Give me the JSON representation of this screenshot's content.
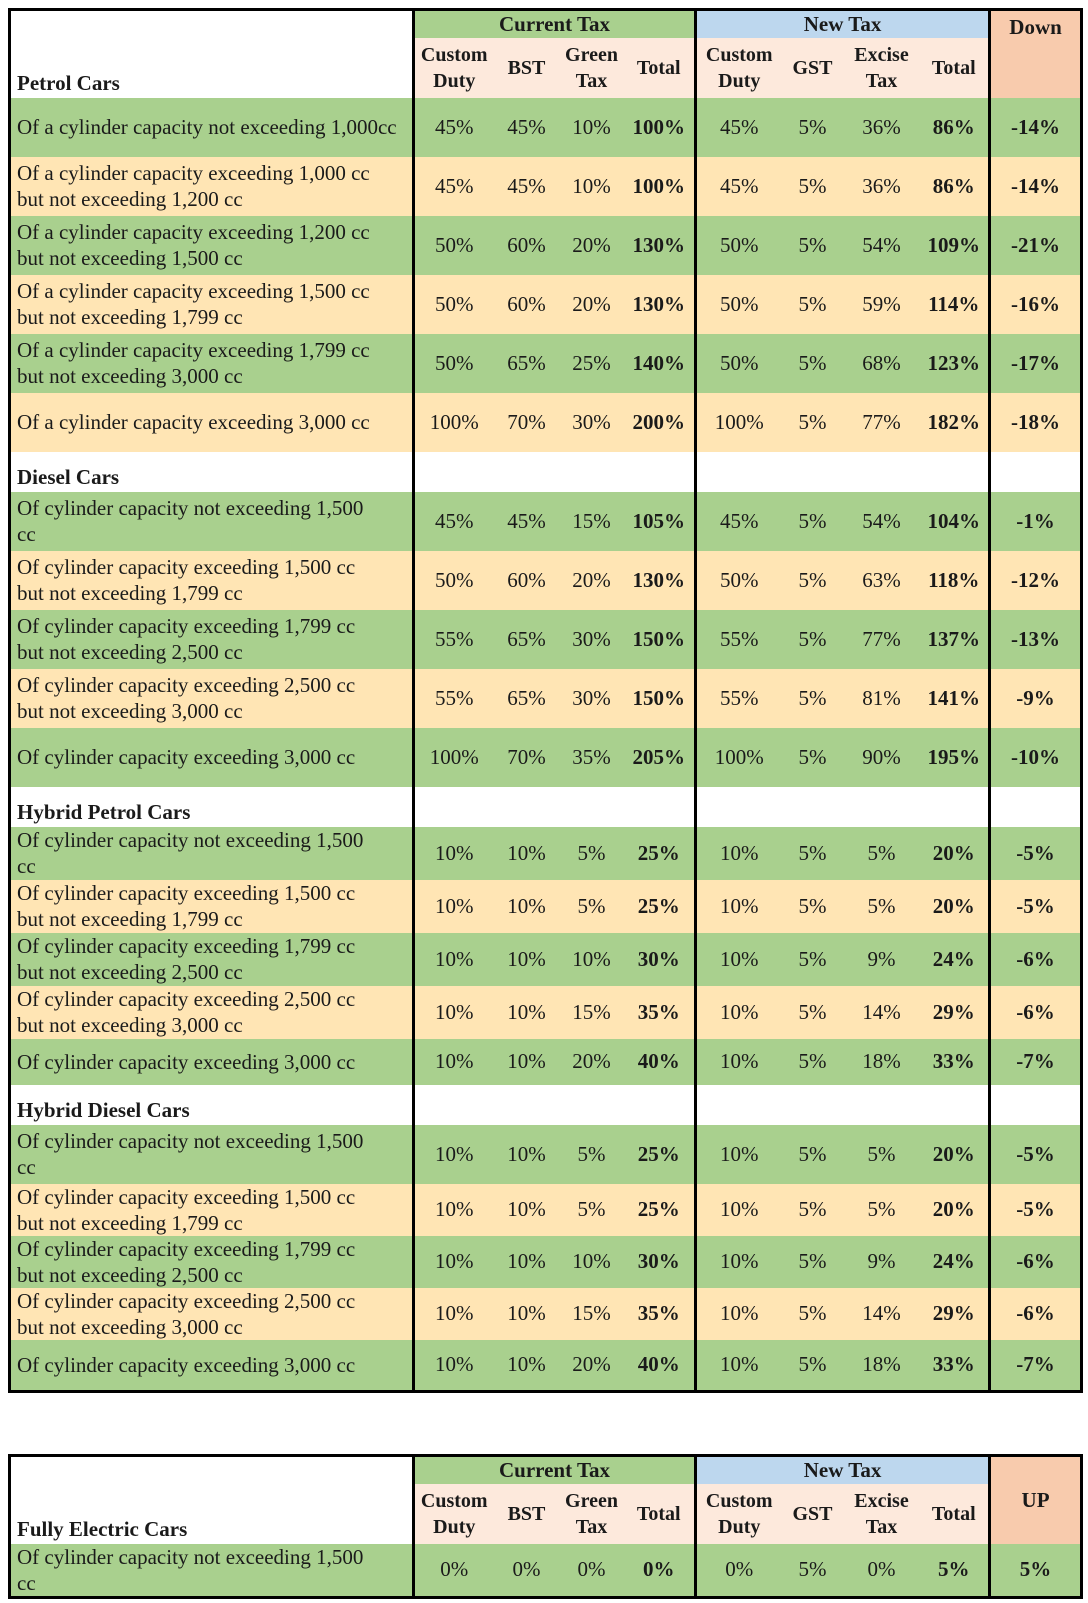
{
  "colors": {
    "green": "#a9d08e",
    "yellow": "#ffe5b4",
    "blue": "#bdd7ee",
    "peach": "#f8cbad"
  },
  "header": {
    "current_tax": "Current Tax",
    "new_tax": "New Tax",
    "down": "Down",
    "up": "UP",
    "custom_duty_1": "Custom",
    "custom_duty_2": "Duty",
    "bst": "BST",
    "green_tax_1": "Green",
    "green_tax_2": "Tax",
    "total": "Total",
    "gst": "GST",
    "excise_tax_1": "Excise",
    "excise_tax_2": "Tax"
  },
  "sections": [
    {
      "title": "Petrol Cars",
      "rows": [
        {
          "label": [
            "Of a cylinder capacity not exceeding 1,000cc"
          ],
          "values": [
            "45%",
            "45%",
            "10%",
            "100%",
            "45%",
            "5%",
            "36%",
            "86%",
            "-14%"
          ]
        },
        {
          "label": [
            "Of a cylinder capacity exceeding 1,000 cc",
            "but not exceeding 1,200 cc"
          ],
          "values": [
            "45%",
            "45%",
            "10%",
            "100%",
            "45%",
            "5%",
            "36%",
            "86%",
            "-14%"
          ]
        },
        {
          "label": [
            "Of a cylinder capacity exceeding 1,200 cc",
            "but not exceeding 1,500 cc"
          ],
          "values": [
            "50%",
            "60%",
            "20%",
            "130%",
            "50%",
            "5%",
            "54%",
            "109%",
            "-21%"
          ]
        },
        {
          "label": [
            "Of a cylinder capacity exceeding 1,500 cc",
            "but not exceeding 1,799 cc"
          ],
          "values": [
            "50%",
            "60%",
            "20%",
            "130%",
            "50%",
            "5%",
            "59%",
            "114%",
            "-16%"
          ]
        },
        {
          "label": [
            "Of a cylinder capacity exceeding 1,799 cc",
            "but not exceeding 3,000 cc"
          ],
          "values": [
            "50%",
            "65%",
            "25%",
            "140%",
            "50%",
            "5%",
            "68%",
            "123%",
            "-17%"
          ]
        },
        {
          "label": [
            "Of a cylinder capacity exceeding 3,000 cc"
          ],
          "values": [
            "100%",
            "70%",
            "30%",
            "200%",
            "100%",
            "5%",
            "77%",
            "182%",
            "-18%"
          ]
        }
      ]
    },
    {
      "title": "Diesel Cars",
      "rows": [
        {
          "label": [
            "Of cylinder capacity not exceeding 1,500",
            "cc"
          ],
          "values": [
            "45%",
            "45%",
            "15%",
            "105%",
            "45%",
            "5%",
            "54%",
            "104%",
            "-1%"
          ]
        },
        {
          "label": [
            "Of cylinder capacity exceeding 1,500 cc",
            "but not exceeding 1,799 cc"
          ],
          "values": [
            "50%",
            "60%",
            "20%",
            "130%",
            "50%",
            "5%",
            "63%",
            "118%",
            "-12%"
          ]
        },
        {
          "label": [
            "Of cylinder capacity exceeding 1,799 cc",
            "but not exceeding 2,500 cc"
          ],
          "values": [
            "55%",
            "65%",
            "30%",
            "150%",
            "55%",
            "5%",
            "77%",
            "137%",
            "-13%"
          ]
        },
        {
          "label": [
            "Of cylinder capacity exceeding 2,500 cc",
            "but not exceeding 3,000 cc"
          ],
          "values": [
            "55%",
            "65%",
            "30%",
            "150%",
            "55%",
            "5%",
            "81%",
            "141%",
            "-9%"
          ]
        },
        {
          "label": [
            "Of cylinder capacity exceeding 3,000 cc"
          ],
          "values": [
            "100%",
            "70%",
            "35%",
            "205%",
            "100%",
            "5%",
            "90%",
            "195%",
            "-10%"
          ]
        }
      ]
    },
    {
      "title": "Hybrid Petrol Cars",
      "rows": [
        {
          "label": [
            "Of cylinder capacity not exceeding 1,500",
            "cc"
          ],
          "values": [
            "10%",
            "10%",
            "5%",
            "25%",
            "10%",
            "5%",
            "5%",
            "20%",
            "-5%"
          ]
        },
        {
          "label": [
            "Of cylinder capacity exceeding 1,500 cc",
            "but not exceeding 1,799 cc"
          ],
          "values": [
            "10%",
            "10%",
            "5%",
            "25%",
            "10%",
            "5%",
            "5%",
            "20%",
            "-5%"
          ]
        },
        {
          "label": [
            "Of cylinder capacity exceeding 1,799 cc",
            "but not exceeding 2,500 cc"
          ],
          "values": [
            "10%",
            "10%",
            "10%",
            "30%",
            "10%",
            "5%",
            "9%",
            "24%",
            "-6%"
          ]
        },
        {
          "label": [
            "Of cylinder capacity exceeding 2,500 cc",
            "but not exceeding 3,000 cc"
          ],
          "values": [
            "10%",
            "10%",
            "15%",
            "35%",
            "10%",
            "5%",
            "14%",
            "29%",
            "-6%"
          ]
        },
        {
          "label": [
            "Of cylinder capacity exceeding 3,000 cc"
          ],
          "values": [
            "10%",
            "10%",
            "20%",
            "40%",
            "10%",
            "5%",
            "18%",
            "33%",
            "-7%"
          ]
        }
      ]
    },
    {
      "title": "Hybrid Diesel Cars",
      "rows": [
        {
          "label": [
            "Of cylinder capacity not exceeding 1,500",
            "cc"
          ],
          "values": [
            "10%",
            "10%",
            "5%",
            "25%",
            "10%",
            "5%",
            "5%",
            "20%",
            "-5%"
          ]
        },
        {
          "label": [
            "Of cylinder capacity exceeding 1,500 cc",
            "but not exceeding 1,799 cc"
          ],
          "values": [
            "10%",
            "10%",
            "5%",
            "25%",
            "10%",
            "5%",
            "5%",
            "20%",
            "-5%"
          ]
        },
        {
          "label": [
            "Of cylinder capacity exceeding 1,799 cc",
            "but not exceeding 2,500 cc"
          ],
          "values": [
            "10%",
            "10%",
            "10%",
            "30%",
            "10%",
            "5%",
            "9%",
            "24%",
            "-6%"
          ]
        },
        {
          "label": [
            "Of cylinder capacity exceeding 2,500 cc",
            "but not exceeding 3,000 cc"
          ],
          "values": [
            "10%",
            "10%",
            "15%",
            "35%",
            "10%",
            "5%",
            "14%",
            "29%",
            "-6%"
          ]
        },
        {
          "label": [
            "Of cylinder capacity exceeding 3,000 cc"
          ],
          "values": [
            "10%",
            "10%",
            "20%",
            "40%",
            "10%",
            "5%",
            "18%",
            "33%",
            "-7%"
          ]
        }
      ]
    }
  ],
  "electric": {
    "title": "Fully Electric Cars",
    "rows": [
      {
        "label": [
          "Of cylinder capacity not exceeding 1,500",
          "cc"
        ],
        "values": [
          "0%",
          "0%",
          "0%",
          "0%",
          "0%",
          "5%",
          "0%",
          "5%",
          "5%"
        ]
      }
    ]
  }
}
